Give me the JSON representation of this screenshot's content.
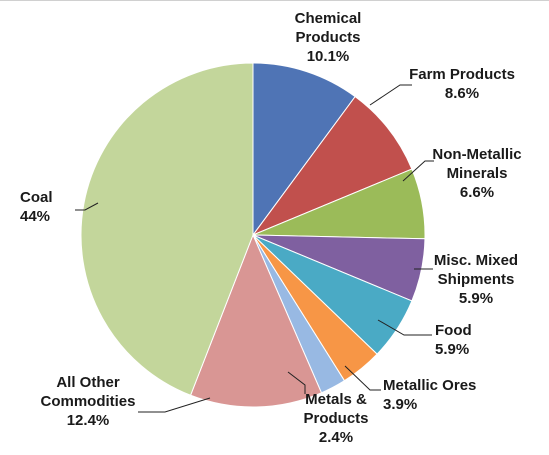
{
  "chart_data": {
    "type": "pie",
    "start_angle_deg": 0,
    "direction": "clockwise",
    "slices": [
      {
        "label_lines": [
          "Chemical",
          "Products",
          "10.1%"
        ],
        "category": "Chemical Products",
        "value": 10.1,
        "color": "#4f74b5"
      },
      {
        "label_lines": [
          "Farm Products",
          "8.6%"
        ],
        "category": "Farm Products",
        "value": 8.6,
        "color": "#c1504d"
      },
      {
        "label_lines": [
          "Non-Metallic",
          "Minerals",
          "6.6%"
        ],
        "category": "Non-Metallic Minerals",
        "value": 6.6,
        "color": "#9bbb59"
      },
      {
        "label_lines": [
          "Misc. Mixed",
          "Shipments",
          "5.9%"
        ],
        "category": "Misc. Mixed Shipments",
        "value": 5.9,
        "color": "#7f60a0"
      },
      {
        "label_lines": [
          "Food",
          "5.9%"
        ],
        "category": "Food",
        "value": 5.9,
        "color": "#4aaac5"
      },
      {
        "label_lines": [
          "Metallic Ores",
          "3.9%"
        ],
        "category": "Metallic Ores",
        "value": 3.9,
        "color": "#f79646"
      },
      {
        "label_lines": [
          "Metals &",
          "Products",
          "2.4%"
        ],
        "category": "Metals & Products",
        "value": 2.4,
        "color": "#98b9e3"
      },
      {
        "label_lines": [
          "All Other",
          "Commodities",
          "12.4%"
        ],
        "category": "All Other Commodities",
        "value": 12.4,
        "color": "#d99694"
      },
      {
        "label_lines": [
          "Coal",
          "44%"
        ],
        "category": "Coal",
        "value": 44,
        "color": "#c3d69b"
      }
    ]
  }
}
